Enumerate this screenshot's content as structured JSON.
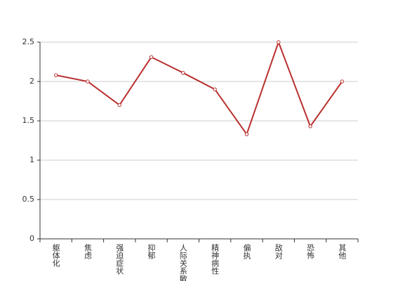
{
  "chart_data": {
    "type": "line",
    "categories": [
      "躯体化",
      "焦虑",
      "强迫症状",
      "抑郁",
      "人际关系敏感",
      "精神病性",
      "偏执",
      "敌对",
      "恐怖",
      "其他"
    ],
    "values": [
      2.08,
      2.0,
      1.7,
      2.31,
      2.11,
      1.9,
      1.33,
      2.5,
      1.43,
      2.0
    ],
    "color": "#b8312f",
    "ylim": [
      0,
      2.5
    ],
    "yticks": [
      0,
      0.5,
      1,
      1.5,
      2,
      2.5
    ],
    "grid": true
  }
}
